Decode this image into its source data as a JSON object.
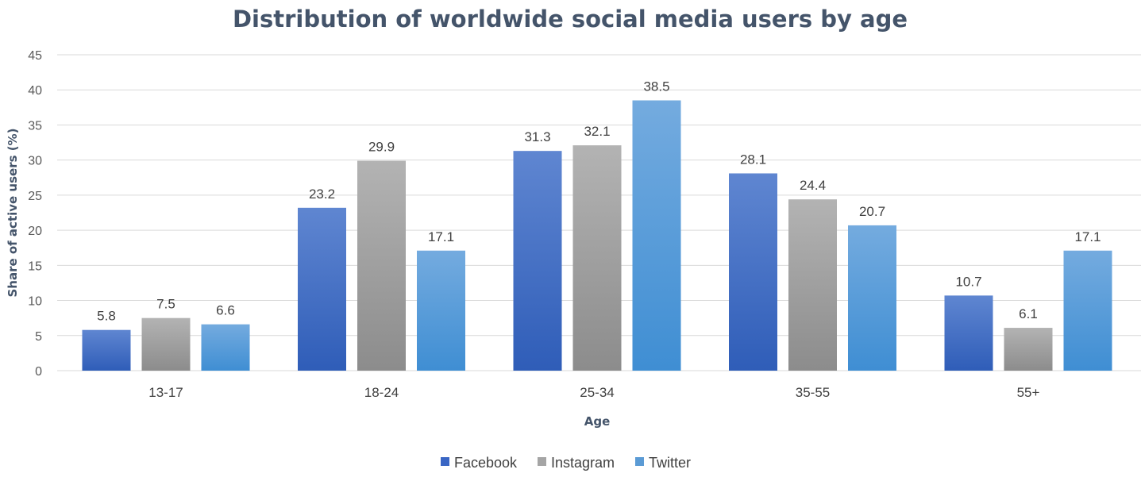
{
  "chart_data": {
    "type": "bar",
    "title": "Distribution of worldwide social media users by age",
    "xlabel": "Age",
    "ylabel": "Share  of active users (%)",
    "ylim": [
      0,
      45
    ],
    "yticks": [
      0,
      5,
      10,
      15,
      20,
      25,
      30,
      35,
      40,
      45
    ],
    "grid": true,
    "legend_position": "bottom",
    "categories": [
      "13-17",
      "18-24",
      "25-34",
      "35-55",
      "55+"
    ],
    "series": [
      {
        "name": "Facebook",
        "values": [
          5.8,
          23.2,
          31.3,
          28.1,
          10.7
        ],
        "color_top": "#5f86d1",
        "color_bottom": "#2f5db8",
        "legend_color": "#3a66c4"
      },
      {
        "name": "Instagram",
        "values": [
          7.5,
          29.9,
          32.1,
          24.4,
          6.1
        ],
        "color_top": "#b3b3b3",
        "color_bottom": "#8c8c8c",
        "legend_color": "#a5a5a5"
      },
      {
        "name": "Twitter",
        "values": [
          6.6,
          17.1,
          38.5,
          20.7,
          17.1
        ],
        "color_top": "#74abdf",
        "color_bottom": "#3f8ed3",
        "legend_color": "#5b9bd5"
      }
    ]
  }
}
